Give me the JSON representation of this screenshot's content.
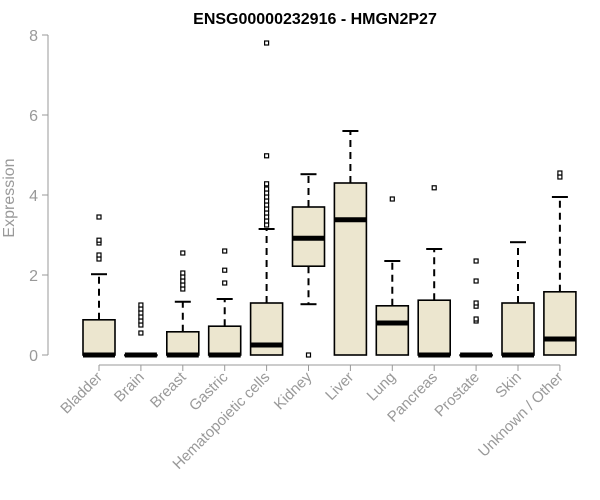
{
  "chart_data": {
    "type": "box",
    "title": "ENSG00000232916 - HMGN2P27",
    "xlabel": "",
    "ylabel": "Expression",
    "ylim": [
      0,
      8
    ],
    "yticks": [
      "0",
      "2",
      "4",
      "6",
      "8"
    ],
    "box_fill": "#ece6cf",
    "box_stroke": "#000000",
    "axis_color": "#999999",
    "groups": [
      {
        "label": "Bladder",
        "min": 0,
        "q1": 0,
        "median": 0,
        "q3": 0.88,
        "max": 2.02,
        "outliers": [
          2.4,
          2.5,
          2.8,
          2.87,
          3.45
        ]
      },
      {
        "label": "Brain",
        "min": 0,
        "q1": 0,
        "median": 0,
        "q3": 0,
        "max": 0,
        "outliers": [
          0.55,
          0.75,
          0.85,
          0.95,
          1.05,
          1.15,
          1.25
        ]
      },
      {
        "label": "Breast",
        "min": 0,
        "q1": 0,
        "median": 0,
        "q3": 0.58,
        "max": 1.33,
        "outliers": [
          1.65,
          1.75,
          1.85,
          1.95,
          2.05,
          2.55
        ]
      },
      {
        "label": "Gastric",
        "min": 0,
        "q1": 0,
        "median": 0,
        "q3": 0.72,
        "max": 1.4,
        "outliers": [
          1.8,
          2.12,
          2.6
        ]
      },
      {
        "label": "Hematopoietic cells",
        "min": 0,
        "q1": 0,
        "median": 0.25,
        "q3": 1.3,
        "max": 3.15,
        "outliers": [
          3.25,
          3.35,
          3.45,
          3.55,
          3.65,
          3.75,
          3.85,
          3.95,
          4.05,
          4.15,
          4.28,
          4.98,
          7.8
        ]
      },
      {
        "label": "Kidney",
        "min": 1.27,
        "q1": 2.22,
        "median": 2.92,
        "q3": 3.7,
        "max": 4.52,
        "outliers": [
          0
        ]
      },
      {
        "label": "Liver",
        "min": 0,
        "q1": 0,
        "median": 3.38,
        "q3": 4.3,
        "max": 5.6,
        "outliers": []
      },
      {
        "label": "Lung",
        "min": 0,
        "q1": 0,
        "median": 0.8,
        "q3": 1.23,
        "max": 2.35,
        "outliers": [
          3.9
        ]
      },
      {
        "label": "Pancreas",
        "min": 0,
        "q1": 0,
        "median": 0,
        "q3": 1.37,
        "max": 2.65,
        "outliers": [
          4.18
        ]
      },
      {
        "label": "Prostate",
        "min": 0,
        "q1": 0,
        "median": 0,
        "q3": 0,
        "max": 0,
        "outliers": [
          0.85,
          0.9,
          1.22,
          1.3,
          1.85,
          2.35
        ]
      },
      {
        "label": "Skin",
        "min": 0,
        "q1": 0,
        "median": 0,
        "q3": 1.3,
        "max": 2.82,
        "outliers": []
      },
      {
        "label": "Unknown / Other",
        "min": 0,
        "q1": 0,
        "median": 0.4,
        "q3": 1.58,
        "max": 3.95,
        "outliers": [
          4.45,
          4.55
        ]
      }
    ]
  }
}
